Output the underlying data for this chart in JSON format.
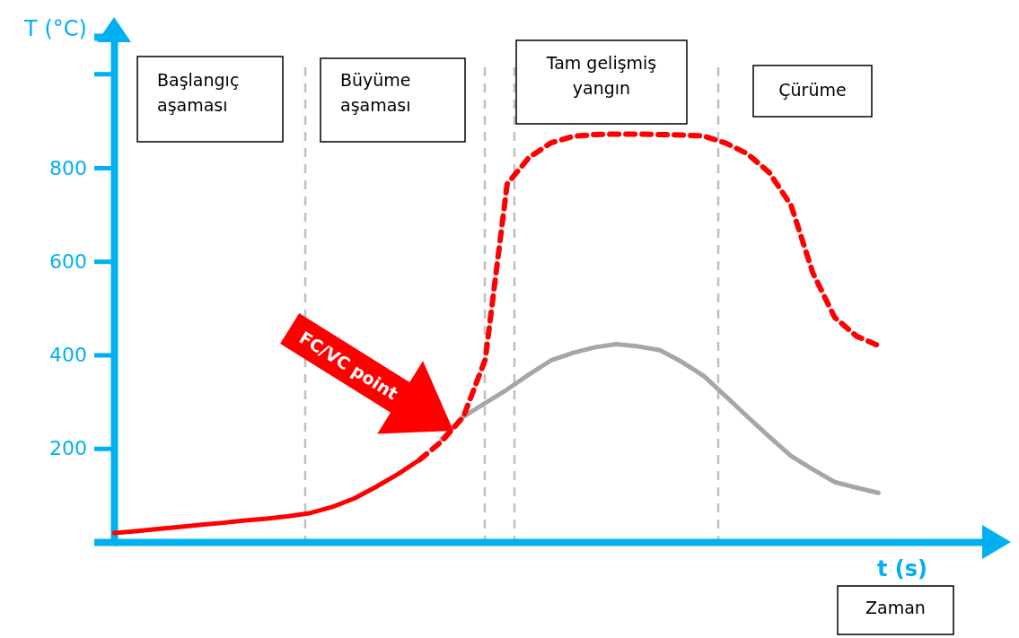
{
  "chart_data": {
    "type": "line",
    "xlabel": "t (s)",
    "ylabel": "T (°C)",
    "ylim": [
      0,
      1080
    ],
    "yticks": [
      200,
      400,
      600,
      800
    ],
    "tick_labels": "y",
    "marker": "none",
    "categories": [
      null,
      null,
      null,
      null,
      null,
      null,
      null,
      null,
      null,
      null,
      null,
      null,
      null,
      null,
      null,
      null,
      null,
      null,
      null,
      null,
      null,
      null,
      null,
      null,
      null,
      null,
      null,
      null,
      null,
      null,
      null,
      null,
      null,
      null,
      null,
      null,
      null,
      null,
      null,
      null,
      null
    ],
    "series": [
      {
        "color": "#ff0000",
        "line_style": "solid",
        "values": [
          19,
          23,
          28,
          32,
          37,
          41,
          46,
          50,
          55,
          62,
          75,
          93,
          118,
          145,
          176,
          null,
          null,
          null,
          null,
          null,
          null,
          null,
          null,
          null,
          null,
          null,
          null,
          null,
          null,
          null,
          null,
          null,
          null,
          null,
          null,
          null,
          null,
          null,
          null,
          null,
          null
        ]
      },
      {
        "color": "#a6a6a6",
        "line_style": "solid",
        "values": [
          null,
          null,
          null,
          null,
          null,
          null,
          null,
          null,
          null,
          null,
          null,
          null,
          null,
          null,
          null,
          220,
          268,
          297,
          326,
          358,
          388,
          404,
          416,
          423,
          418,
          410,
          385,
          355,
          312,
          268,
          225,
          184,
          155,
          128,
          116,
          105,
          null,
          null,
          null,
          null,
          null
        ]
      },
      {
        "color": "#ff0000",
        "line_style": "dashed",
        "values": [
          null,
          null,
          null,
          null,
          null,
          null,
          null,
          null,
          null,
          null,
          null,
          null,
          null,
          null,
          176,
          215,
          268,
          390,
          765,
          822,
          853,
          867,
          871,
          872,
          872,
          871,
          870,
          868,
          853,
          830,
          790,
          720,
          575,
          480,
          440,
          420,
          null,
          null,
          null,
          null,
          null
        ]
      }
    ],
    "annotations": [
      "Başlangıç\naşaması",
      "Büyüme\naşaması",
      "Tam gelişmiş\nyangın",
      "Çürüme",
      "Zaman",
      "FC/VC point"
    ]
  }
}
